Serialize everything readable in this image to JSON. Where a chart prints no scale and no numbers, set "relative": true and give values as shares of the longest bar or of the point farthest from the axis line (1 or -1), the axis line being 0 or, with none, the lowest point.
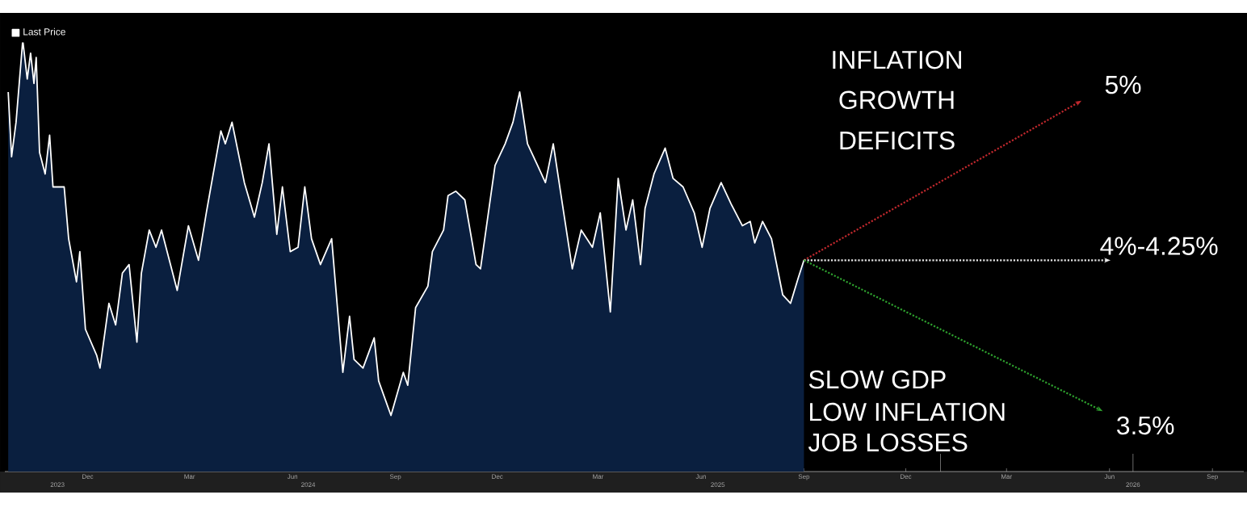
{
  "chart_data": {
    "type": "area",
    "relative": true,
    "legend": "top left",
    "xlim": [
      "2023-09-18",
      "2026-09-29"
    ],
    "xticks": [
      {
        "value": "2023-12-01",
        "label": "Dec"
      },
      {
        "value": "2024-03-01",
        "label": "Mar"
      },
      {
        "value": "2024-06-01",
        "label": "Jun"
      },
      {
        "value": "2024-09-01",
        "label": "Sep"
      },
      {
        "value": "2024-12-01",
        "label": "Dec"
      },
      {
        "value": "2025-03-01",
        "label": "Mar"
      },
      {
        "value": "2025-06-01",
        "label": "Jun"
      },
      {
        "value": "2025-09-01",
        "label": "Sep"
      },
      {
        "value": "2025-12-01",
        "label": "Dec"
      },
      {
        "value": "2026-03-01",
        "label": "Mar"
      },
      {
        "value": "2026-06-01",
        "label": "Jun"
      },
      {
        "value": "2026-09-01",
        "label": "Sep"
      }
    ],
    "x2lim": [
      "2023-09-18",
      "2026-09-29"
    ],
    "x2ticks": [
      {
        "value": "2023-11-04",
        "label": "2023"
      },
      {
        "value": "2024-01-01",
        "label": null
      },
      {
        "value": "2024-06-15",
        "label": "2024"
      },
      {
        "value": "2025-01-01",
        "label": null
      },
      {
        "value": "2025-06-16",
        "label": "2025"
      },
      {
        "value": "2026-01-01",
        "label": null
      },
      {
        "value": "2026-06-22",
        "label": "2026"
      }
    ],
    "series": [
      {
        "name": "Last Price",
        "color": "#ffffff",
        "x": [
          "2023-09-21",
          "2023-09-24",
          "2023-09-28",
          "2023-10-04",
          "2023-10-08",
          "2023-10-11",
          "2023-10-14",
          "2023-10-16",
          "2023-10-19",
          "2023-10-24",
          "2023-10-28",
          "2023-10-31",
          "2023-11-10",
          "2023-11-14",
          "2023-11-21",
          "2023-11-24",
          "2023-11-29",
          "2023-12-09",
          "2023-12-12",
          "2023-12-20",
          "2023-12-26",
          "2024-01-01",
          "2024-01-07",
          "2024-01-14",
          "2024-01-18",
          "2024-01-25",
          "2024-01-31",
          "2024-02-05",
          "2024-02-19",
          "2024-02-29",
          "2024-03-09",
          "2024-03-16",
          "2024-03-29",
          "2024-04-02",
          "2024-04-08",
          "2024-04-19",
          "2024-04-28",
          "2024-05-05",
          "2024-05-11",
          "2024-05-18",
          "2024-05-23",
          "2024-05-30",
          "2024-06-06",
          "2024-06-12",
          "2024-06-18",
          "2024-06-26",
          "2024-07-06",
          "2024-07-16",
          "2024-07-22",
          "2024-07-26",
          "2024-08-03",
          "2024-08-13",
          "2024-08-17",
          "2024-08-28",
          "2024-09-08",
          "2024-09-12",
          "2024-09-19",
          "2024-09-30",
          "2024-10-04",
          "2024-10-14",
          "2024-10-18",
          "2024-10-25",
          "2024-11-02",
          "2024-11-12",
          "2024-11-16",
          "2024-11-29",
          "2024-12-08",
          "2024-12-15",
          "2024-12-21",
          "2024-12-28",
          "2025-01-06",
          "2025-01-13",
          "2025-01-20",
          "2025-01-27",
          "2025-02-06",
          "2025-02-14",
          "2025-02-24",
          "2025-03-03",
          "2025-03-12",
          "2025-03-19",
          "2025-03-26",
          "2025-04-01",
          "2025-04-08",
          "2025-04-12",
          "2025-04-20",
          "2025-04-30",
          "2025-05-07",
          "2025-05-16",
          "2025-05-26",
          "2025-06-02",
          "2025-06-09",
          "2025-06-19",
          "2025-06-28",
          "2025-07-08",
          "2025-07-15",
          "2025-07-19",
          "2025-07-26",
          "2025-08-03",
          "2025-08-13",
          "2025-08-20",
          "2025-08-27",
          "2025-09-01"
        ],
        "values": [
          0.88,
          0.73,
          0.81,
          1.0,
          0.91,
          0.97,
          0.9,
          0.96,
          0.74,
          0.69,
          0.78,
          0.66,
          0.66,
          0.54,
          0.44,
          0.51,
          0.33,
          0.27,
          0.24,
          0.39,
          0.34,
          0.46,
          0.48,
          0.3,
          0.46,
          0.56,
          0.52,
          0.56,
          0.42,
          0.57,
          0.49,
          0.6,
          0.79,
          0.76,
          0.81,
          0.67,
          0.59,
          0.67,
          0.76,
          0.55,
          0.66,
          0.51,
          0.52,
          0.66,
          0.54,
          0.48,
          0.54,
          0.23,
          0.36,
          0.26,
          0.24,
          0.31,
          0.21,
          0.13,
          0.23,
          0.2,
          0.38,
          0.43,
          0.51,
          0.56,
          0.64,
          0.65,
          0.63,
          0.48,
          0.47,
          0.71,
          0.76,
          0.81,
          0.88,
          0.76,
          0.71,
          0.67,
          0.76,
          0.64,
          0.47,
          0.56,
          0.52,
          0.6,
          0.37,
          0.68,
          0.56,
          0.63,
          0.48,
          0.61,
          0.69,
          0.75,
          0.68,
          0.66,
          0.6,
          0.52,
          0.61,
          0.67,
          0.62,
          0.57,
          0.58,
          0.53,
          0.58,
          0.54,
          0.41,
          0.39,
          0.45,
          0.49
        ]
      },
      {
        "type": "line",
        "color": "#c0282d",
        "line_style": "dotted",
        "x": [
          "2025-09-01",
          "2026-05-07"
        ],
        "values": [
          0.49,
          0.86
        ]
      },
      {
        "type": "line",
        "color": "#e8e8e8",
        "line_style": "dotted",
        "x": [
          "2025-09-01",
          "2026-06-02"
        ],
        "values": [
          0.49,
          0.49
        ]
      },
      {
        "type": "line",
        "color": "#2ea02e",
        "line_style": "dotted",
        "x": [
          "2025-09-01",
          "2026-05-26"
        ],
        "values": [
          0.49,
          0.14
        ]
      }
    ],
    "annotations": [
      "INFLATION",
      "GROWTH",
      "DEFICITS",
      {
        "text": "5%",
        "x": "2026-05-07",
        "y": 0.86
      },
      {
        "text": "4%-4.25%",
        "x": "2026-06-02",
        "y": 0.49
      },
      {
        "text": "3.5%",
        "x": "2026-05-26",
        "y": 0.14
      },
      "SLOW GDP",
      "LOW INFLATION",
      "JOB LOSSES"
    ]
  }
}
